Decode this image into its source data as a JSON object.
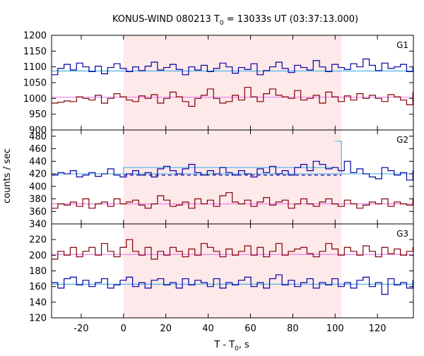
{
  "chart_data": {
    "type": "line",
    "title_parts": {
      "prefix": "KONUS-WIND 080213 T",
      "sub": "0",
      "suffix": " = 13033s UT (03:37:13.000)"
    },
    "xlabel_parts": {
      "prefix": "T - T",
      "sub": "0",
      "suffix": ", s"
    },
    "ylabel": "counts / sec",
    "xlim": [
      -34,
      137
    ],
    "xticks": [
      -20,
      0,
      20,
      40,
      60,
      80,
      100,
      120
    ],
    "xtick_labels": [
      "-20",
      "0",
      "20",
      "40",
      "60",
      "80",
      "100",
      "120"
    ],
    "shaded_interval": [
      0,
      103
    ],
    "colors": {
      "source": "#800000",
      "background_source": "#0000a0",
      "fit_source": "#ee82ee",
      "fit_background": "#4fb3e8",
      "shade": "#fde8ea",
      "dashed": "#0000a0"
    },
    "panels": [
      {
        "name": "G1",
        "ylim": [
          900,
          1200
        ],
        "yticks": [
          900,
          950,
          1000,
          1050,
          1100,
          1150,
          1200
        ],
        "ytick_labels": [
          "900",
          "950",
          "1000",
          "1050",
          "1100",
          "1150",
          "1200"
        ],
        "bin_width": 2.944,
        "x_start": -34,
        "series": [
          {
            "role": "blue",
            "values": [
              1075,
              1095,
              1108,
              1090,
              1112,
              1100,
              1085,
              1102,
              1078,
              1098,
              1110,
              1095,
              1085,
              1100,
              1088,
              1102,
              1115,
              1090,
              1098,
              1108,
              1092,
              1075,
              1100,
              1090,
              1105,
              1085,
              1095,
              1112,
              1100,
              1080,
              1098,
              1092,
              1110,
              1075,
              1088,
              1100,
              1115,
              1095,
              1082,
              1105,
              1098,
              1090,
              1120,
              1100,
              1085,
              1108,
              1098,
              1092,
              1110,
              1100,
              1125,
              1105,
              1088,
              1112,
              1095,
              1100,
              1108,
              1085,
              1098,
              1080
            ]
          },
          {
            "role": "red",
            "values": [
              985,
              988,
              992,
              990,
              1005,
              1000,
              995,
              1010,
              985,
              1000,
              1015,
              1005,
              995,
              990,
              1008,
              1000,
              1012,
              985,
              1000,
              1020,
              1005,
              990,
              975,
              1000,
              1010,
              1030,
              1000,
              985,
              990,
              1010,
              995,
              1035,
              1005,
              990,
              1015,
              1030,
              1010,
              1005,
              1000,
              1025,
              995,
              1000,
              1010,
              985,
              1020,
              1005,
              990,
              1008,
              995,
              1015,
              1000,
              1010,
              1000,
              990,
              1012,
              1005,
              995,
              980,
              1020,
              1000
            ]
          }
        ],
        "fit_lines": [
          {
            "role": "fit_background",
            "level": 1087
          },
          {
            "role": "fit_source",
            "level": 1004
          }
        ],
        "step_extras": []
      },
      {
        "name": "G2",
        "ylim": [
          340,
          490
        ],
        "yticks": [
          340,
          360,
          380,
          400,
          420,
          440,
          460,
          480
        ],
        "ytick_labels": [
          "340",
          "360",
          "380",
          "400",
          "420",
          "440",
          "460",
          "480"
        ],
        "bin_width": 2.944,
        "x_start": -34,
        "series": [
          {
            "role": "blue",
            "values": [
              418,
              422,
              420,
              425,
              415,
              418,
              422,
              416,
              420,
              428,
              418,
              415,
              420,
              425,
              418,
              422,
              415,
              428,
              432,
              425,
              420,
              428,
              435,
              422,
              418,
              425,
              420,
              430,
              422,
              418,
              425,
              420,
              415,
              428,
              422,
              432,
              420,
              425,
              418,
              430,
              435,
              425,
              440,
              435,
              428,
              430,
              425,
              440,
              422,
              428,
              420,
              415,
              412,
              430,
              425,
              418,
              422,
              410,
              425,
              418
            ]
          },
          {
            "role": "red",
            "values": [
              365,
              372,
              370,
              375,
              368,
              380,
              365,
              372,
              375,
              368,
              380,
              372,
              375,
              378,
              370,
              365,
              372,
              385,
              378,
              368,
              370,
              375,
              365,
              380,
              372,
              378,
              368,
              385,
              390,
              375,
              372,
              378,
              368,
              375,
              382,
              370,
              375,
              378,
              365,
              372,
              380,
              372,
              368,
              375,
              380,
              372,
              368,
              378,
              372,
              365,
              370,
              375,
              372,
              380,
              368,
              375,
              372,
              370,
              380,
              375
            ]
          }
        ],
        "fit_lines": [
          {
            "role": "fit_background",
            "level": 420
          },
          {
            "role": "fit_source",
            "level": 372
          }
        ],
        "dashed_line": {
          "level": 418,
          "from": 0,
          "to": 103
        },
        "step_extras": [
          {
            "from": 0,
            "to": 100,
            "level": 430,
            "color": "fit_background"
          },
          {
            "from": 100,
            "to": 103,
            "level": 472,
            "color": "fit_background"
          }
        ]
      },
      {
        "name": "G3",
        "ylim": [
          120,
          240
        ],
        "yticks": [
          120,
          140,
          160,
          180,
          200,
          220
        ],
        "ytick_labels": [
          "120",
          "140",
          "160",
          "180",
          "200",
          "220"
        ],
        "bin_width": 2.944,
        "x_start": -34,
        "series": [
          {
            "role": "red",
            "values": [
              195,
              205,
              200,
              210,
              198,
              205,
              210,
              200,
              215,
              205,
              198,
              210,
              220,
              205,
              200,
              210,
              195,
              205,
              200,
              210,
              205,
              198,
              208,
              200,
              215,
              210,
              205,
              198,
              208,
              200,
              205,
              212,
              200,
              210,
              198,
              205,
              215,
              200,
              205,
              208,
              210,
              202,
              198,
              205,
              215,
              208,
              200,
              210,
              205,
              200,
              212,
              205,
              198,
              210,
              202,
              208,
              200,
              205,
              210,
              220
            ]
          },
          {
            "role": "blue",
            "values": [
              165,
              158,
              170,
              172,
              162,
              168,
              160,
              165,
              170,
              158,
              162,
              168,
              172,
              160,
              165,
              158,
              168,
              170,
              162,
              165,
              158,
              170,
              162,
              168,
              165,
              160,
              170,
              158,
              165,
              162,
              168,
              172,
              160,
              165,
              158,
              170,
              175,
              162,
              168,
              160,
              165,
              170,
              158,
              165,
              162,
              170,
              160,
              165,
              158,
              168,
              172,
              160,
              165,
              150,
              170,
              162,
              165,
              158,
              168,
              165
            ]
          }
        ],
        "fit_lines": [
          {
            "role": "fit_source",
            "level": 201
          },
          {
            "role": "fit_background",
            "level": 163
          }
        ],
        "step_extras": []
      }
    ]
  }
}
